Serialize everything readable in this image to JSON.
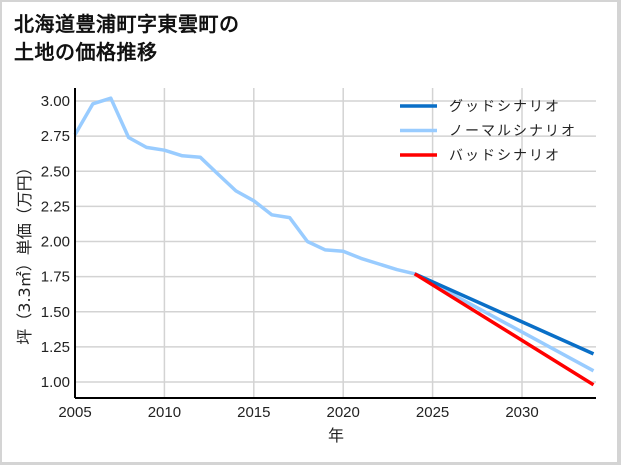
{
  "title": {
    "line1": "北海道豊浦町字東雲町の",
    "line2": "土地の価格推移"
  },
  "colors": {
    "good": "#0a6fc7",
    "normal": "#99ccff",
    "bad": "#ff0000",
    "grid": "#d3d3d3",
    "axis": "#000000"
  },
  "chart_data": {
    "type": "line",
    "title": "北海道豊浦町字東雲町の土地の価格推移",
    "xlabel": "年",
    "ylabel": "坪（3.3㎡）単価（万円）",
    "xlim": [
      2005,
      2034
    ],
    "ylim": [
      0.88,
      3.1
    ],
    "x_ticks": [
      2005,
      2010,
      2015,
      2020,
      2025,
      2030
    ],
    "y_ticks": [
      1.0,
      1.25,
      1.5,
      1.75,
      2.0,
      2.25,
      2.5,
      2.75,
      3.0
    ],
    "y_tick_labels": [
      "1.00",
      "1.25",
      "1.50",
      "1.75",
      "2.00",
      "2.25",
      "2.50",
      "2.75",
      "3.00"
    ],
    "grid": true,
    "legend_position": "upper right",
    "series": [
      {
        "name": "グッドシナリオ",
        "color": "#0a6fc7",
        "x": [
          2024,
          2034
        ],
        "values": [
          1.77,
          1.2
        ]
      },
      {
        "name": "ノーマルシナリオ",
        "color": "#99ccff",
        "x": [
          2005,
          2006,
          2007,
          2008,
          2009,
          2010,
          2011,
          2012,
          2013,
          2014,
          2015,
          2016,
          2017,
          2018,
          2019,
          2020,
          2021,
          2022,
          2023,
          2024,
          2034
        ],
        "values": [
          2.76,
          2.98,
          3.02,
          2.74,
          2.67,
          2.65,
          2.61,
          2.6,
          2.48,
          2.36,
          2.29,
          2.19,
          2.17,
          2.0,
          1.94,
          1.93,
          1.88,
          1.84,
          1.8,
          1.77,
          1.08
        ]
      },
      {
        "name": "バッドシナリオ",
        "color": "#ff0000",
        "x": [
          2024,
          2034
        ],
        "values": [
          1.77,
          0.98
        ]
      }
    ]
  },
  "legend": [
    {
      "label": "グッドシナリオ",
      "color": "#0a6fc7"
    },
    {
      "label": "ノーマルシナリオ",
      "color": "#99ccff"
    },
    {
      "label": "バッドシナリオ",
      "color": "#ff0000"
    }
  ],
  "axes": {
    "xlabel": "年",
    "ylabel": "坪（3.3㎡）単価（万円）"
  }
}
